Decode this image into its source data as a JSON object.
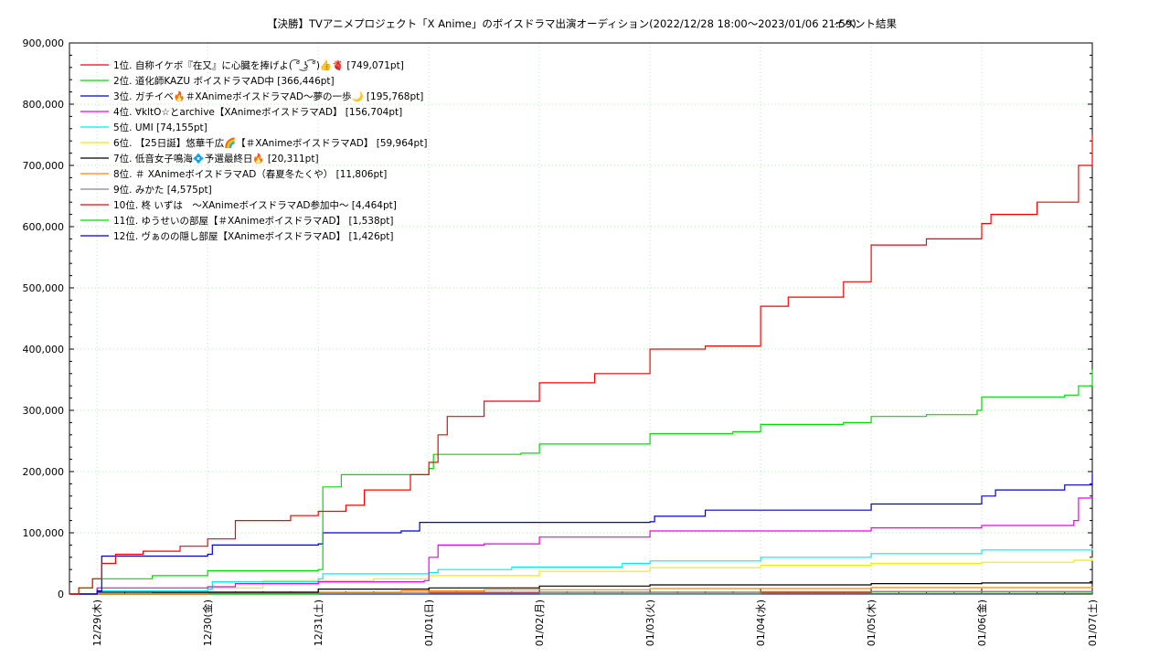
{
  "chart_data": {
    "type": "line",
    "title": "【決勝】TVアニメプロジェクト「X Anime」のボイスドラマ出演オーディション(2022/12/28 18:00〜2023/01/06 21:59)",
    "subtitle": "イベント結果",
    "xlabel": "",
    "ylabel": "",
    "x_start": "2022/12/28 18:00",
    "x_end": "2023/01/07 00:00",
    "x_ticks": [
      "12/29(木)",
      "12/30(金)",
      "12/31(土)",
      "01/01(日)",
      "01/02(月)",
      "01/03(火)",
      "01/04(水)",
      "01/05(木)",
      "01/06(金)",
      "01/07(土)"
    ],
    "ylim": [
      0,
      900000
    ],
    "y_ticks": [
      "0",
      "100,000",
      "200,000",
      "300,000",
      "400,000",
      "500,000",
      "600,000",
      "700,000",
      "800,000",
      "900,000"
    ],
    "grid": true,
    "legend_position": "top-left",
    "series": [
      {
        "name": "1位. 自称イケボ『在又』に心臓を捧げよ( ͡° ͜ʖ ͡°)👍🫀 [749,071pt]",
        "color": "#ff0000",
        "points": [
          [
            "2022/12/28 18:00",
            0
          ],
          [
            "2022/12/28 20:00",
            10000
          ],
          [
            "2022/12/28 23:00",
            25000
          ],
          [
            "2022/12/29 01:00",
            50000
          ],
          [
            "2022/12/29 04:00",
            65000
          ],
          [
            "2022/12/29 10:00",
            70000
          ],
          [
            "2022/12/29 18:00",
            78000
          ],
          [
            "2022/12/30 00:00",
            90000
          ],
          [
            "2022/12/30 06:00",
            120000
          ],
          [
            "2022/12/30 18:00",
            128000
          ],
          [
            "2022/12/31 00:00",
            135000
          ],
          [
            "2022/12/31 06:00",
            145000
          ],
          [
            "2022/12/31 10:00",
            170000
          ],
          [
            "2022/12/31 20:00",
            195000
          ],
          [
            "2023/01/01 00:00",
            215000
          ],
          [
            "2023/01/01 02:00",
            260000
          ],
          [
            "2023/01/01 04:00",
            290000
          ],
          [
            "2023/01/01 12:00",
            315000
          ],
          [
            "2023/01/02 00:00",
            345000
          ],
          [
            "2023/01/02 12:00",
            360000
          ],
          [
            "2023/01/03 00:00",
            400000
          ],
          [
            "2023/01/03 12:00",
            405000
          ],
          [
            "2023/01/04 00:00",
            470000
          ],
          [
            "2023/01/04 06:00",
            485000
          ],
          [
            "2023/01/04 18:00",
            510000
          ],
          [
            "2023/01/05 00:00",
            570000
          ],
          [
            "2023/01/05 12:00",
            580000
          ],
          [
            "2023/01/06 00:00",
            605000
          ],
          [
            "2023/01/06 02:00",
            620000
          ],
          [
            "2023/01/06 12:00",
            640000
          ],
          [
            "2023/01/06 21:00",
            700000
          ],
          [
            "2023/01/07 00:00",
            749071
          ]
        ]
      },
      {
        "name": "2位. 道化師KAZU ボイスドラマAD中 [366,446pt]",
        "color": "#00dd00",
        "points": [
          [
            "2022/12/28 18:00",
            0
          ],
          [
            "2022/12/28 20:00",
            10000
          ],
          [
            "2022/12/28 23:00",
            25000
          ],
          [
            "2022/12/29 12:00",
            30000
          ],
          [
            "2022/12/30 00:00",
            38000
          ],
          [
            "2022/12/31 00:00",
            40000
          ],
          [
            "2022/12/31 01:00",
            175000
          ],
          [
            "2022/12/31 05:00",
            195000
          ],
          [
            "2023/01/01 00:00",
            205000
          ],
          [
            "2023/01/01 01:00",
            228000
          ],
          [
            "2023/01/01 20:00",
            230000
          ],
          [
            "2023/01/02 00:00",
            245000
          ],
          [
            "2023/01/03 00:00",
            262000
          ],
          [
            "2023/01/03 18:00",
            265000
          ],
          [
            "2023/01/04 00:00",
            277000
          ],
          [
            "2023/01/04 18:00",
            280000
          ],
          [
            "2023/01/05 00:00",
            290000
          ],
          [
            "2023/01/05 12:00",
            293000
          ],
          [
            "2023/01/05 23:00",
            300000
          ],
          [
            "2023/01/06 00:00",
            322000
          ],
          [
            "2023/01/06 18:00",
            325000
          ],
          [
            "2023/01/06 21:00",
            340000
          ],
          [
            "2023/01/07 00:00",
            366446
          ]
        ]
      },
      {
        "name": "3位. ガチイベ🔥＃XAnimeボイスドラマAD〜夢の一歩🌙 [195,768pt]",
        "color": "#0000cc",
        "points": [
          [
            "2022/12/28 18:00",
            0
          ],
          [
            "2022/12/29 00:00",
            5000
          ],
          [
            "2022/12/29 01:00",
            62000
          ],
          [
            "2022/12/30 00:00",
            65000
          ],
          [
            "2022/12/30 01:00",
            80000
          ],
          [
            "2022/12/31 00:00",
            82000
          ],
          [
            "2022/12/31 01:00",
            100000
          ],
          [
            "2022/12/31 18:00",
            103000
          ],
          [
            "2022/12/31 22:00",
            117000
          ],
          [
            "2023/01/03 00:00",
            118000
          ],
          [
            "2023/01/03 01:00",
            127000
          ],
          [
            "2023/01/03 12:00",
            137000
          ],
          [
            "2023/01/05 00:00",
            147000
          ],
          [
            "2023/01/06 00:00",
            160000
          ],
          [
            "2023/01/06 03:00",
            170000
          ],
          [
            "2023/01/06 18:00",
            178000
          ],
          [
            "2023/01/07 00:00",
            195768
          ]
        ]
      },
      {
        "name": "4位. ∀kltO☆とarchive【XAnimeボイスドラマAD】 [156,704pt]",
        "color": "#ee00ee",
        "points": [
          [
            "2022/12/28 18:00",
            0
          ],
          [
            "2022/12/29 00:00",
            10000
          ],
          [
            "2022/12/30 00:00",
            12000
          ],
          [
            "2022/12/30 06:00",
            17000
          ],
          [
            "2022/12/31 00:00",
            20000
          ],
          [
            "2022/12/31 23:00",
            22000
          ],
          [
            "2023/01/01 00:00",
            60000
          ],
          [
            "2023/01/01 02:00",
            80000
          ],
          [
            "2023/01/01 12:00",
            82000
          ],
          [
            "2023/01/02 00:00",
            93000
          ],
          [
            "2023/01/03 00:00",
            103000
          ],
          [
            "2023/01/05 00:00",
            108000
          ],
          [
            "2023/01/06 00:00",
            112000
          ],
          [
            "2023/01/06 20:00",
            120000
          ],
          [
            "2023/01/06 21:00",
            156704
          ],
          [
            "2023/01/07 00:00",
            156704
          ]
        ]
      },
      {
        "name": "5位. UMI [74,155pt]",
        "color": "#00eeee",
        "points": [
          [
            "2022/12/28 18:00",
            0
          ],
          [
            "2022/12/29 00:00",
            5000
          ],
          [
            "2022/12/30 00:00",
            8000
          ],
          [
            "2022/12/30 01:00",
            20000
          ],
          [
            "2022/12/31 00:00",
            25000
          ],
          [
            "2022/12/31 01:00",
            33000
          ],
          [
            "2023/01/01 00:00",
            35000
          ],
          [
            "2023/01/01 02:00",
            40000
          ],
          [
            "2023/01/01 18:00",
            44000
          ],
          [
            "2023/01/02 18:00",
            50000
          ],
          [
            "2023/01/03 00:00",
            54000
          ],
          [
            "2023/01/04 00:00",
            60000
          ],
          [
            "2023/01/05 00:00",
            66000
          ],
          [
            "2023/01/06 00:00",
            72000
          ],
          [
            "2023/01/07 00:00",
            74155
          ]
        ]
      },
      {
        "name": "6位. 【25日誕】悠華千広🌈【＃XAnimeボイスドラマAD】 [59,964pt]",
        "color": "#eeee00",
        "points": [
          [
            "2022/12/28 18:00",
            0
          ],
          [
            "2022/12/29 00:00",
            5000
          ],
          [
            "2022/12/30 00:00",
            10000
          ],
          [
            "2022/12/30 12:00",
            22000
          ],
          [
            "2022/12/31 12:00",
            25000
          ],
          [
            "2023/01/01 00:00",
            30000
          ],
          [
            "2023/01/02 00:00",
            37000
          ],
          [
            "2023/01/03 00:00",
            43000
          ],
          [
            "2023/01/04 00:00",
            47000
          ],
          [
            "2023/01/05 00:00",
            50000
          ],
          [
            "2023/01/06 00:00",
            52000
          ],
          [
            "2023/01/06 20:00",
            55000
          ],
          [
            "2023/01/07 00:00",
            59964
          ]
        ]
      },
      {
        "name": "7位. 低音女子鳴海💠予選最終日🔥 [20,311pt]",
        "color": "#000000",
        "points": [
          [
            "2022/12/28 18:00",
            0
          ],
          [
            "2022/12/29 00:00",
            3000
          ],
          [
            "2022/12/31 00:00",
            8000
          ],
          [
            "2023/01/01 00:00",
            10000
          ],
          [
            "2023/01/02 00:00",
            13000
          ],
          [
            "2023/01/03 00:00",
            15000
          ],
          [
            "2023/01/05 00:00",
            17000
          ],
          [
            "2023/01/06 00:00",
            18000
          ],
          [
            "2023/01/07 00:00",
            20311
          ]
        ]
      },
      {
        "name": "8位. ＃ XAnimeボイスドラマAD（春夏冬たくや） [11,806pt]",
        "color": "#ff8800",
        "points": [
          [
            "2022/12/28 18:00",
            0
          ],
          [
            "2022/12/30 00:00",
            3000
          ],
          [
            "2022/12/31 18:00",
            5000
          ],
          [
            "2023/01/01 12:00",
            7000
          ],
          [
            "2023/01/03 00:00",
            9000
          ],
          [
            "2023/01/05 00:00",
            10500
          ],
          [
            "2023/01/07 00:00",
            11806
          ]
        ]
      },
      {
        "name": "9位. みかた [4,575pt]",
        "color": "#888888",
        "points": [
          [
            "2022/12/28 18:00",
            0
          ],
          [
            "2022/12/29 12:00",
            1500
          ],
          [
            "2023/01/01 00:00",
            3000
          ],
          [
            "2023/01/04 00:00",
            4000
          ],
          [
            "2023/01/07 00:00",
            4575
          ]
        ]
      },
      {
        "name": "10位. 柊 いずは　〜XAnimeボイスドラマAD参加中〜 [4,464pt]",
        "color": "#ff0000",
        "points": [
          [
            "2022/12/28 18:00",
            0
          ],
          [
            "2022/12/30 00:00",
            1500
          ],
          [
            "2023/01/02 00:00",
            3000
          ],
          [
            "2023/01/05 00:00",
            4000
          ],
          [
            "2023/01/07 00:00",
            4464
          ]
        ]
      },
      {
        "name": "11位. ゆうせいの部屋【＃XAnimeボイスドラマAD】 [1,538pt]",
        "color": "#00dd00",
        "points": [
          [
            "2022/12/28 18:00",
            0
          ],
          [
            "2022/12/31 00:00",
            700
          ],
          [
            "2023/01/04 00:00",
            1200
          ],
          [
            "2023/01/07 00:00",
            1538
          ]
        ]
      },
      {
        "name": "12位. ヴぁのの隠し部屋【XAnimeボイスドラマAD】 [1,426pt]",
        "color": "#0000cc",
        "points": [
          [
            "2022/12/28 18:00",
            0
          ],
          [
            "2023/01/02 00:00",
            500
          ],
          [
            "2023/01/06 12:00",
            1000
          ],
          [
            "2023/01/07 00:00",
            1426
          ]
        ]
      }
    ]
  }
}
